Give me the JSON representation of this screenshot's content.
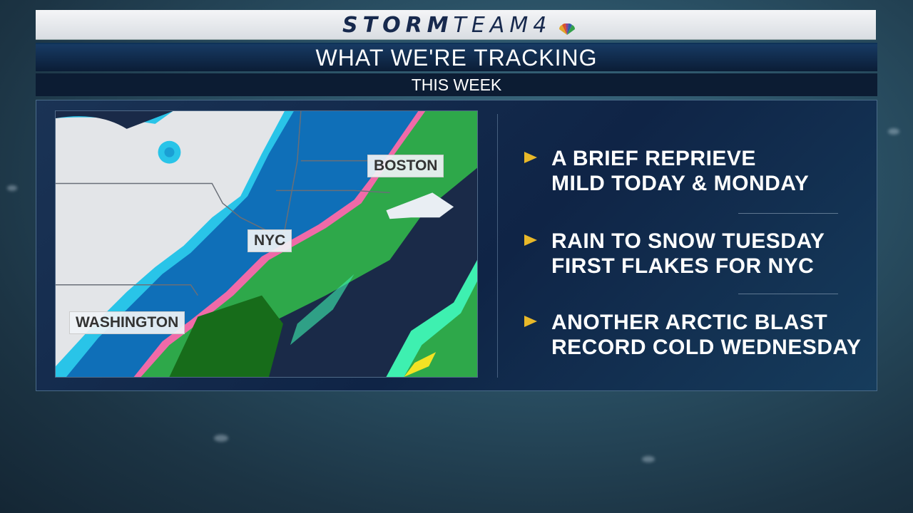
{
  "header": {
    "brand": "STORMTEAM4",
    "brand_bold": "STORM",
    "brand_light": "TEAM4",
    "title": "WHAT WE'RE TRACKING",
    "subtitle": "THIS WEEK"
  },
  "map": {
    "labels": [
      "BOSTON",
      "NYC",
      "WASHINGTON"
    ],
    "colors": {
      "land": "#e3e5e8",
      "ocean": "#1a2a48",
      "snow_light": "#29c4e8",
      "snow_heavy": "#0f6fb8",
      "mix": "#f06aa8",
      "rain_light": "#2ea84a",
      "rain_heavy": "#176c1a",
      "rain_edge": "#3ef0b0",
      "heavy": "#f2e224"
    }
  },
  "bullets": [
    {
      "line1": "A BRIEF REPRIEVE",
      "line2": "MILD TODAY & MONDAY"
    },
    {
      "line1": "RAIN TO SNOW TUESDAY",
      "line2": "FIRST FLAKES FOR NYC"
    },
    {
      "line1": "ANOTHER ARCTIC BLAST",
      "line2": "RECORD COLD WEDNESDAY"
    }
  ],
  "colors": {
    "bullet_arrow": "#e8b829",
    "navy": "#17294d"
  }
}
